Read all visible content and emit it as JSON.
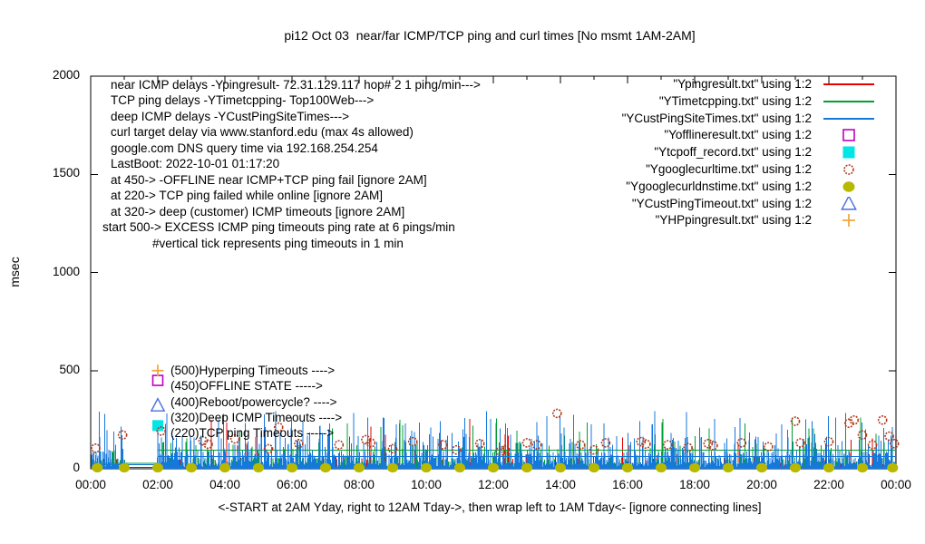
{
  "chart_data": {
    "type": "line",
    "title": "pi12 Oct 03  near/far ICMP/TCP ping and curl times [No msmt 1AM-2AM]",
    "ylabel": "msec",
    "xlabel": "<-START at 2AM Yday, right to 12AM Tday->, then wrap left to 1AM Tday<- [ignore connecting lines]",
    "xlim_hours": [
      0,
      24
    ],
    "ylim": [
      0,
      2000
    ],
    "grid": false,
    "legend_position": "top-right-inside",
    "background": "#ffffff",
    "axis_color": "#000000",
    "x_ticks": [
      {
        "label": "00:00",
        "hour": 0
      },
      {
        "label": "02:00",
        "hour": 2
      },
      {
        "label": "04:00",
        "hour": 4
      },
      {
        "label": "06:00",
        "hour": 6
      },
      {
        "label": "08:00",
        "hour": 8
      },
      {
        "label": "10:00",
        "hour": 10
      },
      {
        "label": "12:00",
        "hour": 12
      },
      {
        "label": "14:00",
        "hour": 14
      },
      {
        "label": "16:00",
        "hour": 16
      },
      {
        "label": "18:00",
        "hour": 18
      },
      {
        "label": "20:00",
        "hour": 20
      },
      {
        "label": "22:00",
        "hour": 22
      },
      {
        "label": "00:00",
        "hour": 24
      }
    ],
    "y_ticks": [
      {
        "label": "0",
        "value": 0
      },
      {
        "label": "500",
        "value": 500
      },
      {
        "label": "1000",
        "value": 1000
      },
      {
        "label": "1500",
        "value": 1500
      },
      {
        "label": "2000",
        "value": 2000
      }
    ],
    "annotations": [
      "near ICMP delays -Ypingresult- 72.31.129.117 hop# 2 1 ping/min--->",
      "TCP ping delays -YTimetcpping- Top100Web--->",
      "deep ICMP delays -YCustPingSiteTimes--->",
      "curl target delay via www.stanford.edu (max 4s allowed)",
      "google.com DNS query time via 192.168.254.254",
      "LastBoot: 2022-10-01 01:17:20",
      "at 450-> -OFFLINE near ICMP+TCP ping fail [ignore 2AM]",
      "at 220-> TCP ping failed while online [ignore 2AM]",
      "at 320-> deep (customer) ICMP timeouts [ignore 2AM]",
      "start 500-> EXCESS ICMP ping timeouts ping rate at 6 pings/min",
      "#vertical tick represents ping timeouts in 1 min"
    ],
    "point_labels": [
      {
        "text": "(500)Hyperping Timeouts ---->",
        "value": 500
      },
      {
        "text": "(450)OFFLINE STATE ----->",
        "value": 450
      },
      {
        "text": "(400)Reboot/powercycle? ---->",
        "value": 400
      },
      {
        "text": "(320)Deep ICMP Timeouts ---->",
        "value": 320
      },
      {
        "text": "(220)TCP ping Timeouts ----->",
        "value": 220
      }
    ],
    "no_measurement_gap_hours": [
      1.02,
      1.98
    ],
    "series": [
      {
        "id": "Ypingresult",
        "legend_label": "\"Ypingresult.txt\" using 1:2",
        "color": "#e60000",
        "style": "impulses",
        "noise": {
          "seed": 11,
          "step": 0.02,
          "dist": [
            [
              0.78,
              2,
              8
            ],
            [
              0.94,
              8,
              30
            ],
            [
              0.99,
              30,
              80
            ],
            [
              1.0,
              80,
              190
            ]
          ]
        },
        "flats": [
          [
            0.0,
            24.0,
            7
          ]
        ],
        "spikes": [
          [
            3.6,
            250
          ],
          [
            4.05,
            235
          ],
          [
            8.35,
            215
          ],
          [
            10.45,
            145
          ],
          [
            11.3,
            255
          ],
          [
            12.35,
            175
          ],
          [
            12.45,
            168
          ],
          [
            16.05,
            120
          ],
          [
            19.3,
            130
          ],
          [
            21.9,
            125
          ],
          [
            23.3,
            155
          ]
        ]
      },
      {
        "id": "YTimetcpping",
        "legend_label": "\"YTimetcpping.txt\" using 1:2",
        "color": "#00a032",
        "style": "impulses",
        "noise": {
          "seed": 22,
          "step": 0.022,
          "dist": [
            [
              0.55,
              3,
              15
            ],
            [
              0.87,
              15,
              60
            ],
            [
              0.975,
              60,
              140
            ],
            [
              1.0,
              140,
              260
            ]
          ]
        },
        "flats": [
          [
            0.25,
            1.98,
            28
          ],
          [
            1.98,
            24.0,
            95
          ]
        ],
        "spikes": [
          [
            5.1,
            185
          ],
          [
            7.2,
            205
          ],
          [
            9.8,
            235
          ],
          [
            12.7,
            195
          ],
          [
            13.6,
            255
          ],
          [
            14.8,
            235
          ],
          [
            17.05,
            255
          ],
          [
            19.5,
            232
          ],
          [
            20.9,
            252
          ],
          [
            21.4,
            205
          ],
          [
            22.5,
            285
          ],
          [
            22.95,
            262
          ],
          [
            23.4,
            178
          ]
        ]
      },
      {
        "id": "YCustPingSiteTimes",
        "legend_label": "\"YCustPingSiteTimes.txt\" using 1:2",
        "color": "#1478dc",
        "style": "impulses",
        "noise": {
          "seed": 33,
          "step": 0.018,
          "dist": [
            [
              0.5,
              8,
              35
            ],
            [
              0.86,
              35,
              95
            ],
            [
              0.97,
              95,
              170
            ],
            [
              1.0,
              170,
              295
            ]
          ]
        },
        "flats": [
          [
            0.25,
            1.98,
            20
          ],
          [
            1.98,
            24.0,
            63
          ]
        ],
        "spikes": [
          [
            0.25,
            290
          ],
          [
            0.9,
            215
          ],
          [
            2.0,
            220
          ],
          [
            3.3,
            165
          ],
          [
            5.2,
            212
          ],
          [
            6.9,
            182
          ],
          [
            9.2,
            232
          ],
          [
            10.1,
            176
          ],
          [
            12.2,
            206
          ],
          [
            13.3,
            238
          ],
          [
            14.3,
            152
          ],
          [
            15.3,
            232
          ],
          [
            17.3,
            182
          ],
          [
            18.2,
            162
          ],
          [
            19.2,
            212
          ],
          [
            20.6,
            226
          ],
          [
            21.5,
            242
          ],
          [
            22.2,
            262
          ],
          [
            23.1,
            202
          ],
          [
            23.85,
            168
          ]
        ]
      },
      {
        "id": "Yofflineresult",
        "legend_label": "\"Yofflineresult.txt\" using 1:2",
        "color": "#c000c0",
        "style": "open-square",
        "points": [
          [
            2.0,
            450
          ]
        ]
      },
      {
        "id": "Ytcpoff_record",
        "legend_label": "\"Ytcpoff_record.txt\" using 1:2",
        "color": "#00e6e6",
        "style": "filled-square",
        "points": [
          [
            2.0,
            220
          ]
        ]
      },
      {
        "id": "Ygooglecurltime",
        "legend_label": "\"Ygooglecurltime.txt\" using 1:2",
        "color": "#b03c1c",
        "style": "open-circle",
        "points": [
          [
            0.15,
            105
          ],
          [
            0.95,
            172
          ],
          [
            2.1,
            192
          ],
          [
            3.35,
            142
          ],
          [
            3.5,
            125
          ],
          [
            4.3,
            152
          ],
          [
            5.3,
            102
          ],
          [
            5.6,
            212
          ],
          [
            6.2,
            128
          ],
          [
            7.4,
            122
          ],
          [
            8.2,
            148
          ],
          [
            8.35,
            132
          ],
          [
            9.0,
            102
          ],
          [
            9.6,
            138
          ],
          [
            10.5,
            122
          ],
          [
            10.9,
            96
          ],
          [
            11.6,
            128
          ],
          [
            12.2,
            88
          ],
          [
            12.35,
            98
          ],
          [
            13.0,
            132
          ],
          [
            13.3,
            122
          ],
          [
            13.9,
            282
          ],
          [
            14.6,
            122
          ],
          [
            15.0,
            96
          ],
          [
            15.35,
            132
          ],
          [
            16.4,
            138
          ],
          [
            16.55,
            126
          ],
          [
            17.2,
            122
          ],
          [
            17.8,
            108
          ],
          [
            18.4,
            128
          ],
          [
            18.55,
            118
          ],
          [
            19.4,
            132
          ],
          [
            20.2,
            112
          ],
          [
            21.0,
            242
          ],
          [
            21.15,
            132
          ],
          [
            22.0,
            138
          ],
          [
            22.6,
            232
          ],
          [
            22.75,
            248
          ],
          [
            23.0,
            172
          ],
          [
            23.3,
            122
          ],
          [
            23.6,
            248
          ],
          [
            23.8,
            166
          ],
          [
            23.95,
            128
          ]
        ]
      },
      {
        "id": "Ygooglecurldnstime",
        "legend_label": "\"Ygooglecurldnstime.txt\" using 1:2",
        "color": "#b8b800",
        "style": "filled-circle",
        "points": [
          [
            0.2,
            5
          ],
          [
            1,
            5
          ],
          [
            2,
            5
          ],
          [
            3,
            5
          ],
          [
            4,
            5
          ],
          [
            5,
            5
          ],
          [
            6,
            5
          ],
          [
            7,
            5
          ],
          [
            8,
            5
          ],
          [
            9,
            5
          ],
          [
            10,
            5
          ],
          [
            11,
            5
          ],
          [
            12,
            5
          ],
          [
            13,
            5
          ],
          [
            14,
            5
          ],
          [
            15,
            5
          ],
          [
            16,
            5
          ],
          [
            17,
            5
          ],
          [
            18,
            5
          ],
          [
            19,
            5
          ],
          [
            20,
            5
          ],
          [
            21,
            5
          ],
          [
            22,
            5
          ],
          [
            23,
            5
          ],
          [
            23.9,
            5
          ]
        ]
      },
      {
        "id": "YCustPingTimeout",
        "legend_label": "\"YCustPingTimeout.txt\" using 1:2",
        "color": "#4a6ee0",
        "style": "open-triangle",
        "points": [
          [
            2.0,
            320
          ]
        ]
      },
      {
        "id": "YHPpingresult",
        "legend_label": "\"YHPpingresult.txt\" using 1:2",
        "color": "#f0a43c",
        "style": "plus",
        "points": [
          [
            2.0,
            500
          ]
        ]
      }
    ]
  }
}
